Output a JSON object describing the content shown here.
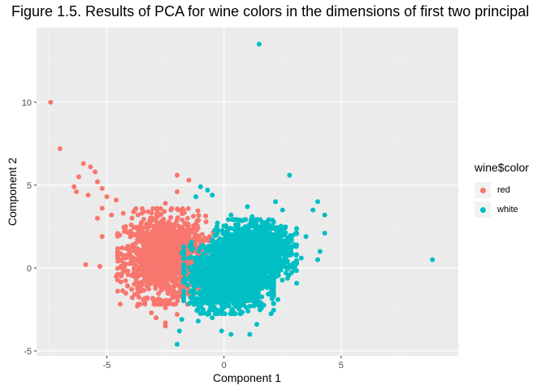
{
  "chart_data": {
    "type": "scatter",
    "title": "Figure 1.5. Results of PCA for wine colors in the dimensions of first two principal",
    "xlabel": "Component 1",
    "ylabel": "Component 2",
    "xlim": [
      -8,
      10
    ],
    "ylim": [
      -5.3,
      14.5
    ],
    "x_ticks": [
      -5,
      0,
      5
    ],
    "x_tick_labels": [
      "-5",
      "0",
      "5"
    ],
    "y_ticks": [
      -5,
      0,
      5,
      10
    ],
    "y_tick_labels": [
      "-5",
      "0",
      "5",
      "10"
    ],
    "grid": true,
    "legend": {
      "title": "wine$color",
      "placement": "right"
    },
    "series": [
      {
        "name": "red",
        "color": "#F8766D",
        "points": [
          [
            -7.4,
            10.0
          ],
          [
            -7.0,
            7.2
          ],
          [
            -6.0,
            6.3
          ],
          [
            -5.7,
            6.1
          ],
          [
            -5.5,
            5.8
          ],
          [
            -6.2,
            5.5
          ],
          [
            -5.4,
            5.2
          ],
          [
            -6.4,
            4.9
          ],
          [
            -5.2,
            4.8
          ],
          [
            -6.3,
            4.6
          ],
          [
            -5.8,
            4.4
          ],
          [
            -5.0,
            4.3
          ],
          [
            -4.6,
            4.1
          ],
          [
            -2.0,
            4.6
          ],
          [
            -2.5,
            3.9
          ],
          [
            -5.2,
            3.6
          ],
          [
            -4.8,
            3.2
          ],
          [
            -4.3,
            3.3
          ],
          [
            -5.4,
            3.0
          ],
          [
            -3.8,
            3.5
          ],
          [
            -5.2,
            1.9
          ],
          [
            -5.9,
            0.2
          ],
          [
            -5.3,
            0.1
          ],
          [
            -2.0,
            5.6
          ],
          [
            -1.5,
            5.3
          ],
          [
            -1.6,
            2.6
          ],
          [
            -1.6,
            2.2
          ],
          [
            -1.4,
            1.5
          ],
          [
            -4.2,
            2.5
          ],
          [
            -3.9,
            1.1
          ],
          [
            -3.7,
            -2.3
          ],
          [
            -3.1,
            -2.7
          ],
          [
            -2.9,
            -3.0
          ],
          [
            -2.5,
            -2.4
          ],
          [
            -2.5,
            -3.3
          ],
          [
            -2.0,
            -2.8
          ],
          [
            -2.5,
            -3.5
          ],
          [
            -2.6,
            -2.0
          ],
          [
            -2.2,
            -1.8
          ],
          [
            -4.6,
            -0.5
          ],
          [
            -4.1,
            -0.4
          ],
          [
            -3.3,
            -0.6
          ],
          [
            -0.8,
            1.8
          ],
          [
            -1.2,
            2.0
          ],
          [
            -1.0,
            1.5
          ]
        ],
        "clusters": [
          {
            "center": [
              -2.5,
              0.7
            ],
            "spread": [
              0.85,
              1.2
            ],
            "count": 1400
          }
        ]
      },
      {
        "name": "white",
        "color": "#00BFC4",
        "points": [
          [
            1.5,
            13.5
          ],
          [
            8.9,
            0.5
          ],
          [
            2.8,
            5.6
          ],
          [
            -1.0,
            4.9
          ],
          [
            -0.7,
            4.7
          ],
          [
            -0.5,
            4.4
          ],
          [
            -1.2,
            4.3
          ],
          [
            4.0,
            4.0
          ],
          [
            4.3,
            3.2
          ],
          [
            3.8,
            3.5
          ],
          [
            4.3,
            2.1
          ],
          [
            4.1,
            1.0
          ],
          [
            4.0,
            0.5
          ],
          [
            2.3,
            -1.9
          ],
          [
            2.0,
            -1.6
          ],
          [
            1.4,
            -3.4
          ],
          [
            1.1,
            -4.0
          ],
          [
            -0.1,
            -3.8
          ],
          [
            0.3,
            -4.0
          ],
          [
            -2.0,
            -4.6
          ],
          [
            -1.9,
            -3.8
          ],
          [
            -1.8,
            -3.1
          ],
          [
            -1.1,
            -3.2
          ],
          [
            -0.5,
            -3.0
          ],
          [
            -0.7,
            -2.8
          ],
          [
            3.0,
            0.1
          ],
          [
            3.3,
            0.6
          ],
          [
            3.5,
            1.9
          ],
          [
            -1.5,
            0.6
          ],
          [
            -1.8,
            0.9
          ],
          [
            -1.2,
            0.2
          ],
          [
            2.6,
            2.4
          ],
          [
            1.0,
            3.7
          ],
          [
            2.5,
            3.5
          ],
          [
            2.2,
            4.0
          ],
          [
            0.3,
            3.2
          ],
          [
            1.2,
            3.1
          ],
          [
            -0.3,
            2.5
          ],
          [
            -1.3,
            -1.8
          ],
          [
            -1.2,
            -0.6
          ]
        ],
        "clusters": [
          {
            "center": [
              0.2,
              -0.6
            ],
            "spread": [
              0.8,
              0.9
            ],
            "count": 1700
          },
          {
            "center": [
              1.3,
              1.0
            ],
            "spread": [
              0.75,
              0.8
            ],
            "count": 1500
          }
        ]
      }
    ]
  }
}
